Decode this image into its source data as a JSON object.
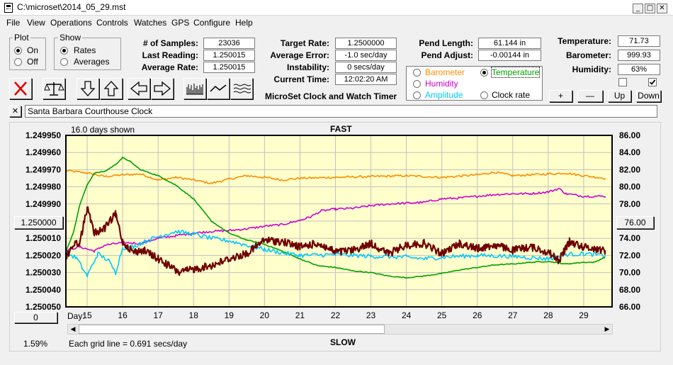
{
  "window": {
    "title": "C:\\microset\\2014_05_29.mst"
  },
  "menu": [
    "File",
    "View",
    "Operations",
    "Controls",
    "Watches",
    "GPS",
    "Configure",
    "Help"
  ],
  "plot_group": {
    "title": "Plot",
    "options": [
      "On",
      "Off"
    ],
    "selected": "On"
  },
  "show_group": {
    "title": "Show",
    "options": [
      "Rates",
      "Averages"
    ],
    "selected": "Rates"
  },
  "readouts_left": [
    {
      "label": "# of Samples:",
      "value": "23036"
    },
    {
      "label": "Last Reading:",
      "value": "1.250015"
    },
    {
      "label": "Average Rate:",
      "value": "1.250015"
    }
  ],
  "readouts_mid": [
    {
      "label": "Target Rate:",
      "value": "1.2500000"
    },
    {
      "label": "Average Error:",
      "value": "-1.0 sec/day"
    },
    {
      "label": "Instability:",
      "value": "0 secs/day"
    },
    {
      "label": "Current Time:",
      "value": "12:02:20 AM"
    }
  ],
  "app_caption": "MicroSet Clock and Watch Timer",
  "readouts_pend": [
    {
      "label": "Pend Length:",
      "value": "61.144 in"
    },
    {
      "label": "Pend Adjust:",
      "value": "-0.00144 in"
    }
  ],
  "secondary_options": [
    {
      "label": "Barometer",
      "color": "#ff8c00",
      "selected": false
    },
    {
      "label": "Temperature",
      "color": "#00a000",
      "selected": true
    },
    {
      "label": "Humidity",
      "color": "#d000d0",
      "selected": false
    },
    {
      "label": "Amplitude",
      "color": "#00c8ff",
      "selected": false
    },
    {
      "label": "Clock rate",
      "color": "#000000",
      "selected": false
    }
  ],
  "readouts_env": [
    {
      "label": "Temperature:",
      "value": "71.73"
    },
    {
      "label": "Barometer:",
      "value": "999.93"
    },
    {
      "label": "Humidity:",
      "value": "63%"
    }
  ],
  "checkboxes": [
    {
      "checked": false
    },
    {
      "checked": true
    }
  ],
  "axis_buttons": [
    "+",
    "—",
    "Up",
    "Down"
  ],
  "watch_name": "Santa Barbara Courthouse Clock",
  "chart_header": {
    "days_shown": "16.0 days shown",
    "fast": "FAST",
    "slow": "SLOW"
  },
  "chart_footer": {
    "percent": "1.59%",
    "grid_note": "Each grid line = 0.691 secs/day",
    "day_label": "Day:"
  },
  "left_button": "1.250000",
  "right_button": "76.00",
  "scroll_zero_button": "0",
  "colors": {
    "plot_bg": "#ffffcc",
    "barometer": "#ff8c00",
    "temperature": "#00a000",
    "humidity": "#d000d0",
    "amplitude": "#00c8ff",
    "rate": "#700000",
    "close_red": "#e00000"
  },
  "chart_data": {
    "type": "line",
    "title": "FAST",
    "xlabel": "Day:",
    "x_ticks": [
      15,
      16,
      17,
      18,
      19,
      20,
      21,
      22,
      23,
      24,
      25,
      26,
      27,
      28,
      29
    ],
    "xlim": [
      14.4,
      29.8
    ],
    "y_left_ticks": [
      "1.249950",
      "1.249960",
      "1.249970",
      "1.249980",
      "1.249990",
      "1.250000",
      "1.250010",
      "1.250020",
      "1.250030",
      "1.250040",
      "1.250050"
    ],
    "y_left_range": [
      1.24995,
      1.25005
    ],
    "y_right_ticks": [
      "86.00",
      "84.00",
      "82.00",
      "80.00",
      "78.00",
      "76.00",
      "74.00",
      "72.00",
      "70.00",
      "68.00",
      "66.00"
    ],
    "y_right_range": [
      66,
      86
    ],
    "grid": true,
    "series": [
      {
        "name": "Barometer",
        "color": "#ff8c00",
        "axis": "right",
        "points": [
          [
            14.4,
            81.9
          ],
          [
            15,
            81.6
          ],
          [
            15.5,
            81.2
          ],
          [
            16,
            81.4
          ],
          [
            16.5,
            81.5
          ],
          [
            17,
            80.8
          ],
          [
            17.5,
            81.1
          ],
          [
            18,
            80.8
          ],
          [
            18.5,
            80.4
          ],
          [
            19,
            80.9
          ],
          [
            19.5,
            81.3
          ],
          [
            20,
            81.1
          ],
          [
            20.5,
            80.8
          ],
          [
            21,
            81.0
          ],
          [
            22,
            81.1
          ],
          [
            23,
            81.2
          ],
          [
            24,
            81.3
          ],
          [
            25,
            81.1
          ],
          [
            26,
            81.4
          ],
          [
            26.5,
            81.7
          ],
          [
            27,
            81.3
          ],
          [
            27.5,
            81.4
          ],
          [
            28,
            81.5
          ],
          [
            28.5,
            81.6
          ],
          [
            29,
            81.3
          ],
          [
            29.6,
            81.0
          ]
        ]
      },
      {
        "name": "Humidity",
        "color": "#d000d0",
        "axis": "right",
        "points": [
          [
            14.4,
            72.6
          ],
          [
            14.8,
            73.0
          ],
          [
            15.2,
            72.5
          ],
          [
            15.5,
            73.2
          ],
          [
            16,
            73.5
          ],
          [
            16.5,
            73.4
          ],
          [
            17,
            74.0
          ],
          [
            17.5,
            74.3
          ],
          [
            18,
            74.6
          ],
          [
            18.5,
            74.8
          ],
          [
            19,
            74.9
          ],
          [
            19.5,
            75.1
          ],
          [
            20,
            75.4
          ],
          [
            20.5,
            75.6
          ],
          [
            21,
            76.1
          ],
          [
            21.3,
            76.5
          ],
          [
            21.6,
            77.2
          ],
          [
            22,
            77.4
          ],
          [
            22.5,
            77.5
          ],
          [
            23,
            77.8
          ],
          [
            23.5,
            78.0
          ],
          [
            24,
            78.1
          ],
          [
            24.5,
            78.2
          ],
          [
            25,
            78.6
          ],
          [
            25.5,
            78.7
          ],
          [
            26,
            78.9
          ],
          [
            26.5,
            79.1
          ],
          [
            27,
            79.2
          ],
          [
            27.5,
            79.2
          ],
          [
            28,
            79.4
          ],
          [
            28.3,
            79.8
          ],
          [
            28.5,
            79.2
          ],
          [
            29,
            78.9
          ],
          [
            29.6,
            78.9
          ]
        ]
      },
      {
        "name": "Temperature",
        "color": "#00a000",
        "axis": "right",
        "points": [
          [
            14.4,
            72.5
          ],
          [
            14.6,
            74.5
          ],
          [
            14.8,
            78.0
          ],
          [
            15,
            80.2
          ],
          [
            15.2,
            81.6
          ],
          [
            15.5,
            81.8
          ],
          [
            15.8,
            82.6
          ],
          [
            16,
            83.4
          ],
          [
            16.2,
            83.0
          ],
          [
            16.5,
            82.0
          ],
          [
            17,
            81.3
          ],
          [
            17.5,
            80.2
          ],
          [
            18,
            78.6
          ],
          [
            18.5,
            76.0
          ],
          [
            19,
            74.6
          ],
          [
            19.5,
            73.8
          ],
          [
            20,
            73.3
          ],
          [
            20.5,
            72.5
          ],
          [
            21,
            71.6
          ],
          [
            21.5,
            70.8
          ],
          [
            22,
            70.6
          ],
          [
            22.5,
            70.2
          ],
          [
            23,
            70.0
          ],
          [
            23.5,
            69.6
          ],
          [
            24,
            69.4
          ],
          [
            24.5,
            69.6
          ],
          [
            25,
            69.9
          ],
          [
            25.5,
            70.3
          ],
          [
            26,
            70.6
          ],
          [
            26.5,
            70.9
          ],
          [
            27,
            71.0
          ],
          [
            27.5,
            71.2
          ],
          [
            28,
            71.3
          ],
          [
            28.5,
            71.0
          ],
          [
            29,
            71.2
          ],
          [
            29.3,
            71.2
          ],
          [
            29.6,
            71.8
          ]
        ]
      },
      {
        "name": "Amplitude",
        "color": "#00c8ff",
        "axis": "right",
        "points": [
          [
            14.4,
            72.3
          ],
          [
            14.7,
            71.7
          ],
          [
            15,
            69.6
          ],
          [
            15.3,
            72.2
          ],
          [
            15.6,
            71.4
          ],
          [
            15.8,
            70.0
          ],
          [
            16,
            72.9
          ],
          [
            16.3,
            73.0
          ],
          [
            16.5,
            73.4
          ],
          [
            17,
            74.2
          ],
          [
            17.5,
            74.8
          ],
          [
            18,
            74.5
          ],
          [
            18.5,
            74.0
          ],
          [
            19,
            73.7
          ],
          [
            19.5,
            73.2
          ],
          [
            20,
            72.7
          ],
          [
            20.5,
            72.3
          ],
          [
            21,
            72.0
          ],
          [
            22,
            72.1
          ],
          [
            23,
            71.9
          ],
          [
            24,
            71.8
          ],
          [
            24.5,
            71.6
          ],
          [
            25,
            71.8
          ],
          [
            26,
            72.0
          ],
          [
            27,
            71.9
          ],
          [
            28,
            71.6
          ],
          [
            28.5,
            72.1
          ],
          [
            29,
            72.2
          ],
          [
            29.6,
            72.0
          ]
        ]
      },
      {
        "name": "Clock rate",
        "color": "#700000",
        "axis": "left",
        "points": [
          [
            14.4,
            1.250021
          ],
          [
            14.6,
            1.250014
          ],
          [
            14.8,
            1.250012
          ],
          [
            15,
            1.249992
          ],
          [
            15.2,
            1.250007
          ],
          [
            15.5,
            1.250004
          ],
          [
            15.8,
            1.249996
          ],
          [
            16,
            1.250012
          ],
          [
            16.3,
            1.250018
          ],
          [
            16.6,
            1.250017
          ],
          [
            17,
            1.250022
          ],
          [
            17.3,
            1.250026
          ],
          [
            17.6,
            1.25003
          ],
          [
            18,
            1.250028
          ],
          [
            18.5,
            1.250026
          ],
          [
            19,
            1.250022
          ],
          [
            19.5,
            1.250019
          ],
          [
            20,
            1.250011
          ],
          [
            20.5,
            1.250012
          ],
          [
            21,
            1.250015
          ],
          [
            21.5,
            1.250013
          ],
          [
            22,
            1.250018
          ],
          [
            22.5,
            1.250017
          ],
          [
            23,
            1.250013
          ],
          [
            23.5,
            1.250019
          ],
          [
            24,
            1.250014
          ],
          [
            24.5,
            1.250013
          ],
          [
            25,
            1.250019
          ],
          [
            25.5,
            1.250013
          ],
          [
            26,
            1.250016
          ],
          [
            26.5,
            1.250014
          ],
          [
            27,
            1.250017
          ],
          [
            27.5,
            1.250015
          ],
          [
            28,
            1.250018
          ],
          [
            28.3,
            1.250023
          ],
          [
            28.6,
            1.250012
          ],
          [
            29,
            1.250015
          ],
          [
            29.6,
            1.250017
          ]
        ]
      }
    ]
  }
}
